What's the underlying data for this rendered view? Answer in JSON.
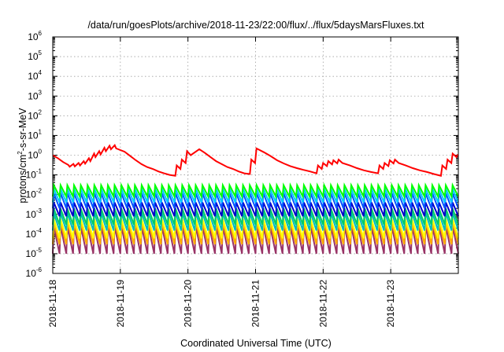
{
  "chart_data": {
    "type": "line",
    "title": "/data/run/goesPlots/archive/2018-11-23/22:00/flux/../flux/5daysMarsFluxes.txt",
    "xlabel": "Coordinated Universal Time (UTC)",
    "ylabel": "protons/cm²-s-sr-MeV",
    "ylabel_parts": {
      "base": "protons/cm",
      "sup": "2",
      "rest": "-s-sr-MeV"
    },
    "yscale": "log",
    "ylim": [
      1e-06,
      1000000.0
    ],
    "xlim": [
      "2018-11-18",
      "2018-11-24"
    ],
    "grid": true,
    "legend": "none",
    "y_ticks": [
      {
        "value": 1e-06,
        "base": "10",
        "exp": "-6"
      },
      {
        "value": 1e-05,
        "base": "10",
        "exp": "-5"
      },
      {
        "value": 0.0001,
        "base": "10",
        "exp": "-4"
      },
      {
        "value": 0.001,
        "base": "10",
        "exp": "-3"
      },
      {
        "value": 0.01,
        "base": "10",
        "exp": "-2"
      },
      {
        "value": 0.1,
        "base": "10",
        "exp": "-1"
      },
      {
        "value": 1,
        "base": "10",
        "exp": "0"
      },
      {
        "value": 10.0,
        "base": "10",
        "exp": "1"
      },
      {
        "value": 100.0,
        "base": "10",
        "exp": "2"
      },
      {
        "value": 1000.0,
        "base": "10",
        "exp": "3"
      },
      {
        "value": 10000.0,
        "base": "10",
        "exp": "4"
      },
      {
        "value": 100000.0,
        "base": "10",
        "exp": "5"
      },
      {
        "value": 1000000.0,
        "base": "10",
        "exp": "6"
      }
    ],
    "x_ticks": [
      "2018-11-18",
      "2018-11-19",
      "2018-11-20",
      "2018-11-21",
      "2018-11-22",
      "2018-11-23"
    ],
    "series": [
      {
        "color": "#ff0000",
        "x": [
          "2018-11-18 00:00",
          "2018-11-18 01:50",
          "2018-11-18 03:40",
          "2018-11-18 05:30",
          "2018-11-18 06:00",
          "2018-11-18 07:20",
          "2018-11-18 07:50",
          "2018-11-18 09:10",
          "2018-11-18 09:40",
          "2018-11-18 11:00",
          "2018-11-18 11:30",
          "2018-11-18 12:50",
          "2018-11-18 13:20",
          "2018-11-18 14:40",
          "2018-11-18 15:10",
          "2018-11-18 16:30",
          "2018-11-18 17:00",
          "2018-11-18 18:20",
          "2018-11-18 18:50",
          "2018-11-18 20:10",
          "2018-11-18 20:40",
          "2018-11-18 22:00",
          "2018-11-18 22:30",
          "2018-11-19 01:30",
          "2018-11-19 03:30",
          "2018-11-19 05:30",
          "2018-11-19 07:30",
          "2018-11-19 09:30",
          "2018-11-19 11:30",
          "2018-11-19 13:30",
          "2018-11-19 15:30",
          "2018-11-19 17:30",
          "2018-11-19 19:30",
          "2018-11-19 20:00",
          "2018-11-19 21:20",
          "2018-11-19 21:50",
          "2018-11-19 23:10",
          "2018-11-19 23:40",
          "2018-11-20 01:00",
          "2018-11-20 04:00",
          "2018-11-20 06:00",
          "2018-11-20 08:00",
          "2018-11-20 10:00",
          "2018-11-20 12:00",
          "2018-11-20 14:00",
          "2018-11-20 16:00",
          "2018-11-20 18:00",
          "2018-11-20 20:00",
          "2018-11-20 22:00",
          "2018-11-20 22:30",
          "2018-11-20 23:50",
          "2018-11-21 00:20",
          "2018-11-21 03:00",
          "2018-11-21 05:20",
          "2018-11-21 07:40",
          "2018-11-21 10:00",
          "2018-11-21 12:20",
          "2018-11-21 14:40",
          "2018-11-21 17:00",
          "2018-11-21 19:20",
          "2018-11-21 21:40",
          "2018-11-21 22:10",
          "2018-11-21 23:30",
          "2018-11-22 00:00",
          "2018-11-22 01:20",
          "2018-11-22 01:50",
          "2018-11-22 03:10",
          "2018-11-22 03:40",
          "2018-11-22 05:00",
          "2018-11-22 05:30",
          "2018-11-22 06:50",
          "2018-11-22 09:30",
          "2018-11-22 12:00",
          "2018-11-22 14:30",
          "2018-11-22 17:00",
          "2018-11-22 19:30",
          "2018-11-22 20:00",
          "2018-11-22 21:20",
          "2018-11-22 21:50",
          "2018-11-22 23:10",
          "2018-11-22 23:40",
          "2018-11-23 01:00",
          "2018-11-23 01:30",
          "2018-11-23 02:50",
          "2018-11-23 05:20",
          "2018-11-23 07:50",
          "2018-11-23 10:20",
          "2018-11-23 12:50",
          "2018-11-23 15:20",
          "2018-11-23 17:50",
          "2018-11-23 18:20",
          "2018-11-23 19:40",
          "2018-11-23 20:10",
          "2018-11-23 21:30",
          "2018-11-23 22:00",
          "2018-11-23 23:20",
          "2018-11-23 23:50"
        ],
        "y": [
          1.0,
          0.7,
          0.45,
          0.32,
          0.26,
          0.36,
          0.27,
          0.4,
          0.3,
          0.5,
          0.37,
          0.7,
          0.5,
          1.2,
          0.8,
          1.6,
          1.1,
          2.4,
          1.6,
          3.0,
          2.0,
          3.2,
          2.2,
          1.5,
          0.9,
          0.55,
          0.35,
          0.25,
          0.2,
          0.15,
          0.12,
          0.1,
          0.09,
          0.3,
          0.2,
          0.6,
          0.4,
          1.6,
          1.0,
          2.0,
          1.3,
          0.8,
          0.5,
          0.35,
          0.25,
          0.2,
          0.15,
          0.12,
          0.11,
          0.6,
          0.4,
          2.2,
          1.4,
          0.9,
          0.55,
          0.38,
          0.28,
          0.22,
          0.18,
          0.15,
          0.12,
          0.3,
          0.2,
          0.4,
          0.28,
          0.5,
          0.34,
          0.55,
          0.38,
          0.6,
          0.4,
          0.3,
          0.22,
          0.17,
          0.14,
          0.12,
          0.3,
          0.2,
          0.4,
          0.28,
          0.55,
          0.38,
          0.6,
          0.4,
          0.3,
          0.22,
          0.17,
          0.14,
          0.11,
          0.09,
          0.3,
          0.2,
          0.6,
          0.4,
          1.2,
          0.8,
          1.1
        ]
      },
      {
        "color": "#00ff00",
        "cycle_hours": 2.4,
        "peak": 0.03,
        "trough": 0.008
      },
      {
        "color": "#00ccff",
        "cycle_hours": 2.4,
        "peak": 0.02,
        "trough": 0.004
      },
      {
        "color": "#0055ff",
        "cycle_hours": 2.4,
        "peak": 0.012,
        "trough": 0.002
      },
      {
        "color": "#0000cc",
        "cycle_hours": 2.4,
        "peak": 0.004,
        "trough": 0.0008
      },
      {
        "color": "#00cc66",
        "cycle_hours": 2.4,
        "peak": 0.002,
        "trough": 0.0003
      },
      {
        "color": "#00bbbb",
        "cycle_hours": 2.4,
        "peak": 0.0012,
        "trough": 0.00015
      },
      {
        "color": "#ffff00",
        "cycle_hours": 2.4,
        "peak": 0.0006,
        "trough": 6e-05
      },
      {
        "color": "#ffaa00",
        "cycle_hours": 2.4,
        "peak": 0.0004,
        "trough": 3e-05
      },
      {
        "color": "#993366",
        "cycle_hours": 2.4,
        "peak": 0.00025,
        "trough": 1e-05
      }
    ]
  }
}
